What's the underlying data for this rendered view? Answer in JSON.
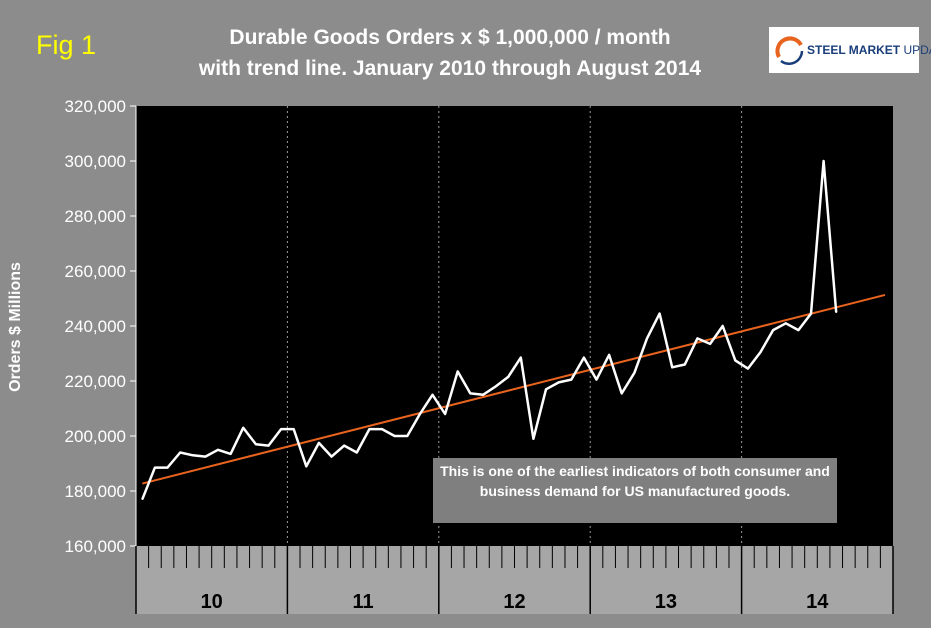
{
  "fig_label": "Fig 1",
  "title_line1": "Durable Goods Orders x $ 1,000,000 / month",
  "title_line2": "with trend line.  January 2010 through August 2014",
  "logo": {
    "text_bold": "STEEL MARKET",
    "text_thin": " UPDATE"
  },
  "annotation": "This is one of the earliest indicators of both consumer and business demand for US manufactured goods.",
  "colors": {
    "background": "#8c8c8c",
    "plot_area": "#000000",
    "series": "#ffffff",
    "trend": "#e8641e",
    "fig_label": "#ffff00",
    "annotation_box": "#7f7f7f"
  },
  "chart_data": {
    "type": "line",
    "title": "Durable Goods Orders x $ 1,000,000 / month with trend line.  January 2010 through August 2014",
    "xlabel": "",
    "ylabel": "Orders $ Millions",
    "ylim": [
      160000,
      320000
    ],
    "yticks": [
      160000,
      180000,
      200000,
      220000,
      240000,
      260000,
      280000,
      300000,
      320000
    ],
    "ytick_labels": [
      "160,000",
      "180,000",
      "200,000",
      "220,000",
      "240,000",
      "260,000",
      "280,000",
      "300,000",
      "320,000"
    ],
    "year_labels": [
      "10",
      "11",
      "12",
      "13",
      "14"
    ],
    "months_per_year": 12,
    "grid": "dashed vertical lines at year boundaries",
    "series": [
      {
        "name": "Durable Goods Orders",
        "values": [
          177000,
          188500,
          188500,
          194000,
          193000,
          192500,
          195000,
          193500,
          203000,
          197000,
          196500,
          202500,
          202500,
          189000,
          197500,
          192500,
          196500,
          194000,
          202500,
          202500,
          200000,
          200000,
          208000,
          215000,
          208000,
          223500,
          215500,
          215000,
          218000,
          221500,
          228500,
          199000,
          217000,
          219500,
          220500,
          228500,
          220500,
          229500,
          215500,
          223000,
          235500,
          244500,
          225000,
          226000,
          235500,
          233500,
          240000,
          227500,
          224500,
          230500,
          238500,
          241000,
          238500,
          244500,
          300000,
          245000
        ]
      },
      {
        "name": "Trend",
        "trend_start": 182700,
        "trend_end": 251300
      }
    ]
  }
}
